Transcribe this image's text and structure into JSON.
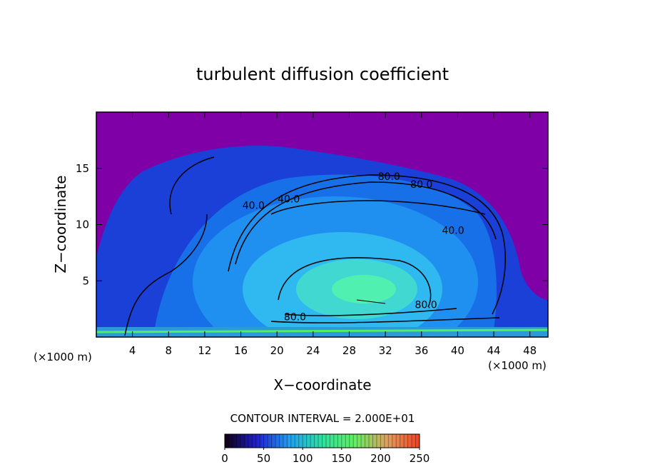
{
  "chart_data": {
    "type": "contour",
    "title": "turbulent diffusion coefficient",
    "xlabel": "X−coordinate",
    "ylabel": "Z−coordinate",
    "xunit": "(×1000 m)",
    "xlim": [
      0,
      50
    ],
    "xticks": [
      4,
      8,
      12,
      16,
      20,
      24,
      28,
      32,
      36,
      40,
      44,
      48
    ],
    "ylim": [
      0,
      20
    ],
    "yticks": [
      5,
      10,
      15
    ],
    "contour_labels": [
      {
        "text": "80.0",
        "x": 32.4,
        "z": 14.3
      },
      {
        "text": "80.0",
        "x": 36.0,
        "z": 13.6
      },
      {
        "text": "40.0",
        "x": 17.4,
        "z": 11.7
      },
      {
        "text": "40.0",
        "x": 21.3,
        "z": 12.3
      },
      {
        "text": "40.0",
        "x": 39.5,
        "z": 9.5
      },
      {
        "text": "80.0",
        "x": 22.0,
        "z": 1.8
      },
      {
        "text": "80.0",
        "x": 36.5,
        "z": 2.9
      }
    ],
    "colorbar": {
      "label": "CONTOUR INTERVAL = 2.000E+01",
      "lim": [
        0,
        250
      ],
      "ticks": [
        0,
        50,
        100,
        150,
        200,
        250
      ],
      "colors": [
        "#100010",
        "#2020d0",
        "#20a0f0",
        "#30e0a0",
        "#60f060",
        "#e0a060",
        "#f04020"
      ]
    }
  }
}
